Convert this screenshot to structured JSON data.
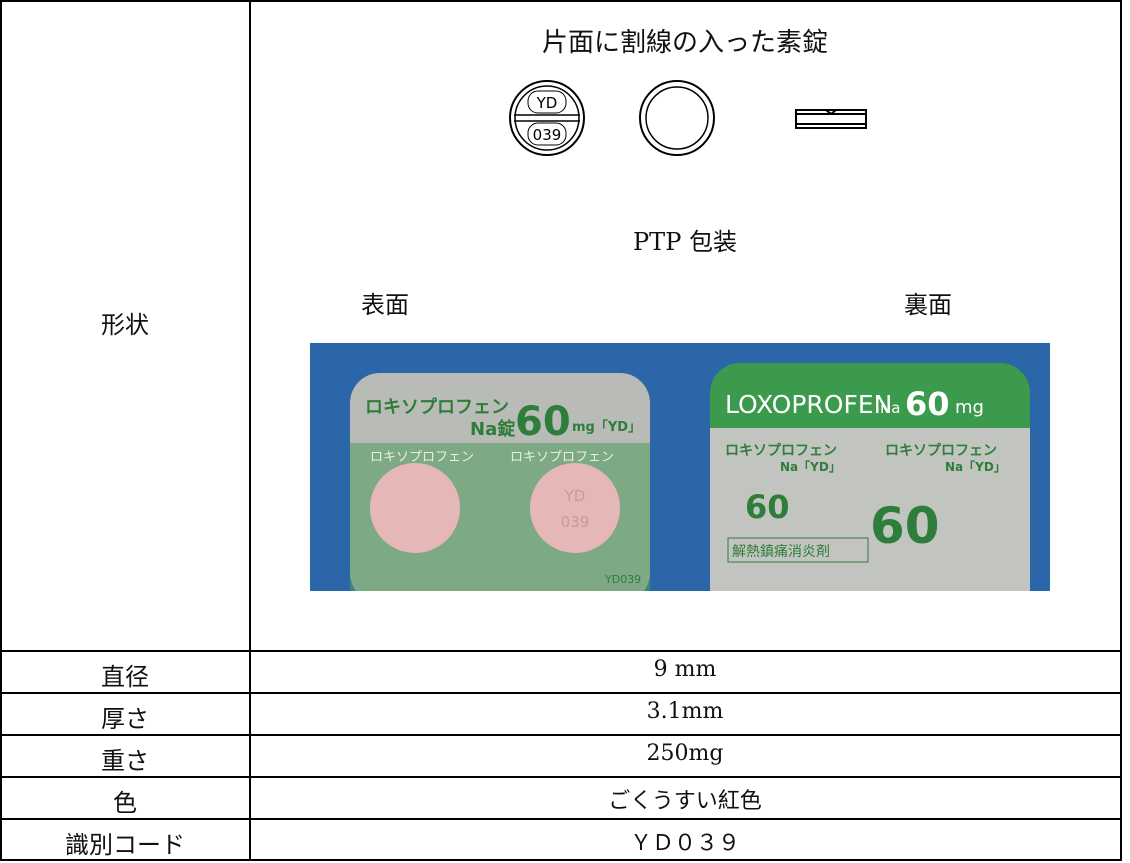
{
  "shape": {
    "label": "形状",
    "title": "片面に割線の入った素錠",
    "imprint_top": "YD",
    "imprint_bottom": "039",
    "package": "PTP 包装",
    "front": "表面",
    "back": "裏面",
    "front_photo": {
      "brand": "ロキソプロフェン",
      "form": "Na錠",
      "dose": "60",
      "unit": "mg「YD」",
      "strip": "ロキソプロフェン",
      "pill_top": "YD",
      "pill_bottom": "039",
      "code": "YD039"
    },
    "back_photo": {
      "brand_en": "LOXOPROFEN",
      "na": "Na",
      "dose": "60",
      "unit": "mg",
      "name": "ロキソプロフェン",
      "suffix": "Na「YD」",
      "effect": "解熱鎮痛消炎剤"
    }
  },
  "rows": [
    [
      "直径",
      "9 mm"
    ],
    [
      "厚さ",
      "3.1mm"
    ],
    [
      "重さ",
      "250mg"
    ],
    [
      "色",
      "ごくうすい紅色"
    ],
    [
      "識別コード",
      "ＹＤ０３９"
    ]
  ]
}
